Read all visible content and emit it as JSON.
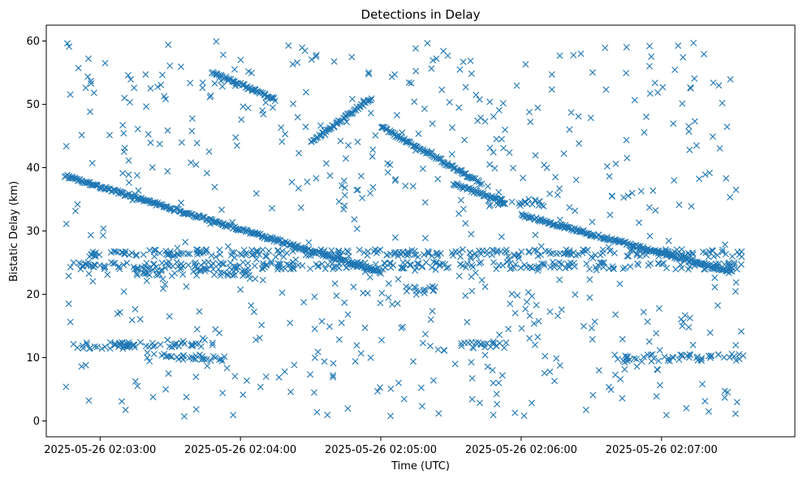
{
  "chart_data": {
    "type": "scatter",
    "title": "Detections in Delay",
    "xlabel": "Time (UTC)",
    "ylabel": "Bistatic Delay (km)",
    "marker": "x",
    "series_color": "#1f77b4",
    "grid": false,
    "legend": "none",
    "xlim": [
      "2025-05-26 02:02:37",
      "2025-05-26 02:07:57"
    ],
    "ylim": [
      -2.5,
      62.5
    ],
    "x_ticks": [
      "2025-05-26 02:03:00",
      "2025-05-26 02:04:00",
      "2025-05-26 02:05:00",
      "2025-05-26 02:06:00",
      "2025-05-26 02:07:00"
    ],
    "y_ticks": [
      0,
      10,
      20,
      30,
      40,
      50,
      60
    ],
    "tracks": [
      {
        "start": "2025-05-26 02:02:45",
        "end": "2025-05-26 02:05:00",
        "delay_start": 38.7,
        "delay_end": 23.5
      },
      {
        "start": "2025-05-26 02:04:30",
        "end": "2025-05-26 02:04:56",
        "delay_start": 44.0,
        "delay_end": 51.0
      },
      {
        "start": "2025-05-26 02:05:00",
        "end": "2025-05-26 02:05:43",
        "delay_start": 46.5,
        "delay_end": 37.5
      },
      {
        "start": "2025-05-26 02:05:31",
        "end": "2025-05-26 02:05:53",
        "delay_start": 37.5,
        "delay_end": 34.5
      },
      {
        "start": "2025-05-26 02:06:00",
        "end": "2025-05-26 02:07:30",
        "delay_start": 32.5,
        "delay_end": 23.5
      },
      {
        "start": "2025-05-26 02:03:48",
        "end": "2025-05-26 02:04:15",
        "delay_start": 55.0,
        "delay_end": 50.8
      }
    ],
    "bands": [
      {
        "start": "2025-05-26 02:02:45",
        "end": "2025-05-26 02:07:35",
        "delay": 24.5
      },
      {
        "start": "2025-05-26 02:02:55",
        "end": "2025-05-26 02:07:35",
        "delay": 26.5
      },
      {
        "start": "2025-05-26 02:02:45",
        "end": "2025-05-26 02:03:15",
        "delay": 11.8
      },
      {
        "start": "2025-05-26 02:03:05",
        "end": "2025-05-26 02:03:45",
        "delay": 12.2
      },
      {
        "start": "2025-05-26 02:03:20",
        "end": "2025-05-26 02:03:55",
        "delay": 10.0
      },
      {
        "start": "2025-05-26 02:05:32",
        "end": "2025-05-26 02:05:55",
        "delay": 12.0
      },
      {
        "start": "2025-05-26 02:05:45",
        "end": "2025-05-26 02:06:10",
        "delay": 34.5
      },
      {
        "start": "2025-05-26 02:06:40",
        "end": "2025-05-26 02:07:35",
        "delay": 10.0
      },
      {
        "start": "2025-05-26 02:05:10",
        "end": "2025-05-26 02:05:25",
        "delay": 20.7
      },
      {
        "start": "2025-05-26 02:03:15",
        "end": "2025-05-26 02:04:05",
        "delay": 23.5
      }
    ],
    "noise_count": 620
  }
}
